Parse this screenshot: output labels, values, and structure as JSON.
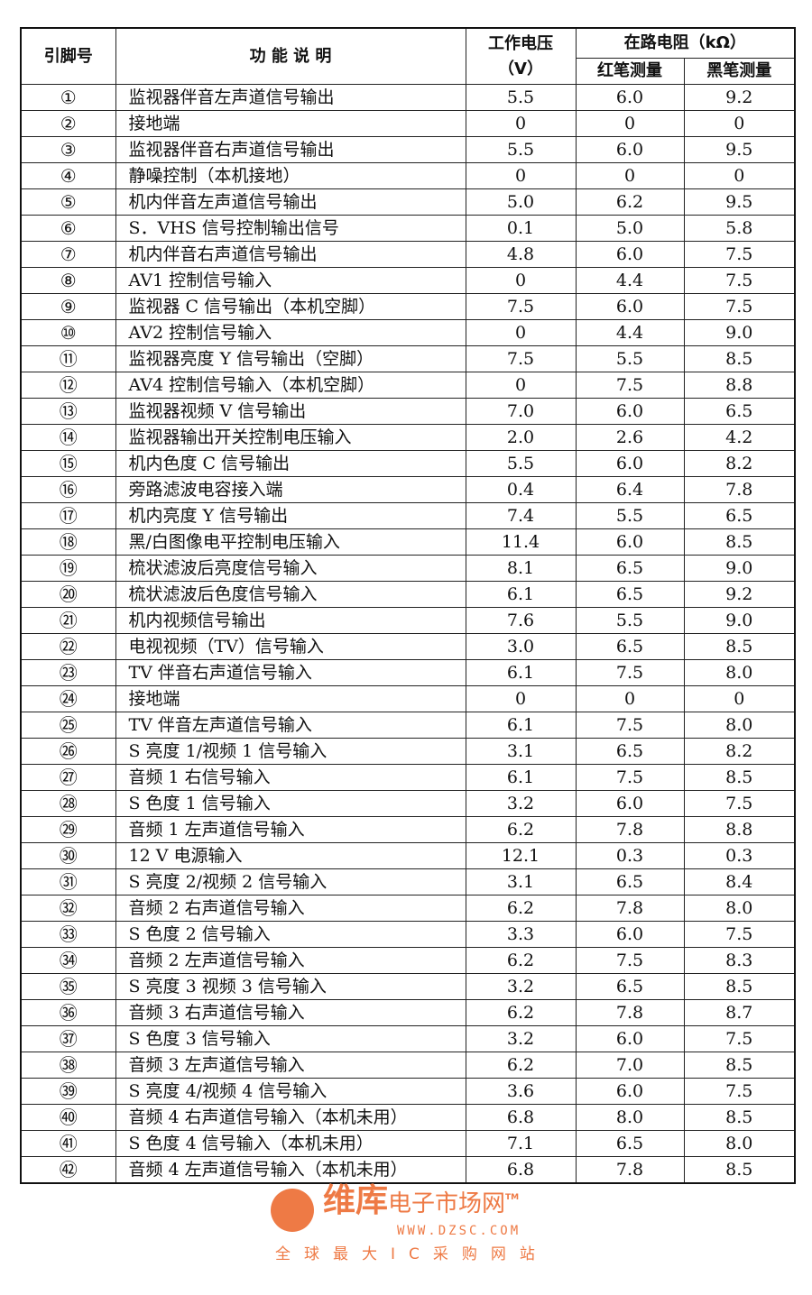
{
  "headers": {
    "pin": "引脚号",
    "function": "功 能 说 明",
    "voltage_line1": "工作电压",
    "voltage_line2": "（V）",
    "resistance": "在路电阻（kΩ）",
    "red": "红笔测量",
    "black": "黑笔测量"
  },
  "rows": [
    [
      "①",
      "监视器伴音左声道信号输出",
      "5.5",
      "6.0",
      "9.2"
    ],
    [
      "②",
      "接地端",
      "0",
      "0",
      "0"
    ],
    [
      "③",
      "监视器伴音右声道信号输出",
      "5.5",
      "6.0",
      "9.5"
    ],
    [
      "④",
      "静噪控制（本机接地）",
      "0",
      "0",
      "0"
    ],
    [
      "⑤",
      "机内伴音左声道信号输出",
      "5.0",
      "6.2",
      "9.5"
    ],
    [
      "⑥",
      "S．VHS 信号控制输出信号",
      "0.1",
      "5.0",
      "5.8"
    ],
    [
      "⑦",
      "机内伴音右声道信号输出",
      "4.8",
      "6.0",
      "7.5"
    ],
    [
      "⑧",
      "AV1 控制信号输入",
      "0",
      "4.4",
      "7.5"
    ],
    [
      "⑨",
      "监视器 C 信号输出（本机空脚）",
      "7.5",
      "6.0",
      "7.5"
    ],
    [
      "⑩",
      "AV2 控制信号输入",
      "0",
      "4.4",
      "9.0"
    ],
    [
      "⑪",
      "监视器亮度 Y 信号输出（空脚）",
      "7.5",
      "5.5",
      "8.5"
    ],
    [
      "⑫",
      "AV4 控制信号输入（本机空脚）",
      "0",
      "7.5",
      "8.8"
    ],
    [
      "⑬",
      "监视器视频 V 信号输出",
      "7.0",
      "6.0",
      "6.5"
    ],
    [
      "⑭",
      "监视器输出开关控制电压输入",
      "2.0",
      "2.6",
      "4.2"
    ],
    [
      "⑮",
      "机内色度 C 信号输出",
      "5.5",
      "6.0",
      "8.2"
    ],
    [
      "⑯",
      "旁路滤波电容接入端",
      "0.4",
      "6.4",
      "7.8"
    ],
    [
      "⑰",
      "机内亮度 Y 信号输出",
      "7.4",
      "5.5",
      "6.5"
    ],
    [
      "⑱",
      "黑/白图像电平控制电压输入",
      "11.4",
      "6.0",
      "8.5"
    ],
    [
      "⑲",
      "梳状滤波后亮度信号输入",
      "8.1",
      "6.5",
      "9.0"
    ],
    [
      "⑳",
      "梳状滤波后色度信号输入",
      "6.1",
      "6.5",
      "9.2"
    ],
    [
      "㉑",
      "机内视频信号输出",
      "7.6",
      "5.5",
      "9.0"
    ],
    [
      "㉒",
      "电视视频（TV）信号输入",
      "3.0",
      "6.5",
      "8.5"
    ],
    [
      "㉓",
      "TV 伴音右声道信号输入",
      "6.1",
      "7.5",
      "8.0"
    ],
    [
      "㉔",
      "接地端",
      "0",
      "0",
      "0"
    ],
    [
      "㉕",
      "TV 伴音左声道信号输入",
      "6.1",
      "7.5",
      "8.0"
    ],
    [
      "㉖",
      "S 亮度 1/视频 1 信号输入",
      "3.1",
      "6.5",
      "8.2"
    ],
    [
      "㉗",
      "音频 1 右信号输入",
      "6.1",
      "7.5",
      "8.5"
    ],
    [
      "㉘",
      "S 色度 1 信号输入",
      "3.2",
      "6.0",
      "7.5"
    ],
    [
      "㉙",
      "音频 1 左声道信号输入",
      "6.2",
      "7.8",
      "8.8"
    ],
    [
      "㉚",
      "12 V 电源输入",
      "12.1",
      "0.3",
      "0.3"
    ],
    [
      "㉛",
      "S 亮度 2/视频 2 信号输入",
      "3.1",
      "6.5",
      "8.4"
    ],
    [
      "㉜",
      "音频 2 右声道信号输入",
      "6.2",
      "7.8",
      "8.0"
    ],
    [
      "㉝",
      "S 色度 2 信号输入",
      "3.3",
      "6.0",
      "7.5"
    ],
    [
      "㉞",
      "音频 2 左声道信号输入",
      "6.2",
      "7.5",
      "8.3"
    ],
    [
      "㉟",
      "S 亮度 3 视频 3 信号输入",
      "3.2",
      "6.5",
      "8.5"
    ],
    [
      "㊱",
      "音频 3 右声道信号输入",
      "6.2",
      "7.8",
      "8.7"
    ],
    [
      "㊲",
      "S 色度 3 信号输入",
      "3.2",
      "6.0",
      "7.5"
    ],
    [
      "㊳",
      "音频 3 左声道信号输入",
      "6.2",
      "7.0",
      "8.5"
    ],
    [
      "㊴",
      "S 亮度 4/视频 4 信号输入",
      "3.6",
      "6.0",
      "7.5"
    ],
    [
      "㊵",
      "音频 4 右声道信号输入（本机未用）",
      "6.8",
      "8.0",
      "8.5"
    ],
    [
      "㊶",
      "S 色度 4 信号输入（本机未用）",
      "7.1",
      "6.5",
      "8.0"
    ],
    [
      "㊷",
      "音频 4 左声道信号输入（本机未用）",
      "6.8",
      "7.8",
      "8.5"
    ]
  ],
  "watermark": {
    "brand": "维库",
    "brand_suffix": "电子市场网",
    "trademark": "TM",
    "url": "WWW.DZSC.COM",
    "slogan": "全球最大IC采购网站",
    "color": "#ee7a45"
  }
}
